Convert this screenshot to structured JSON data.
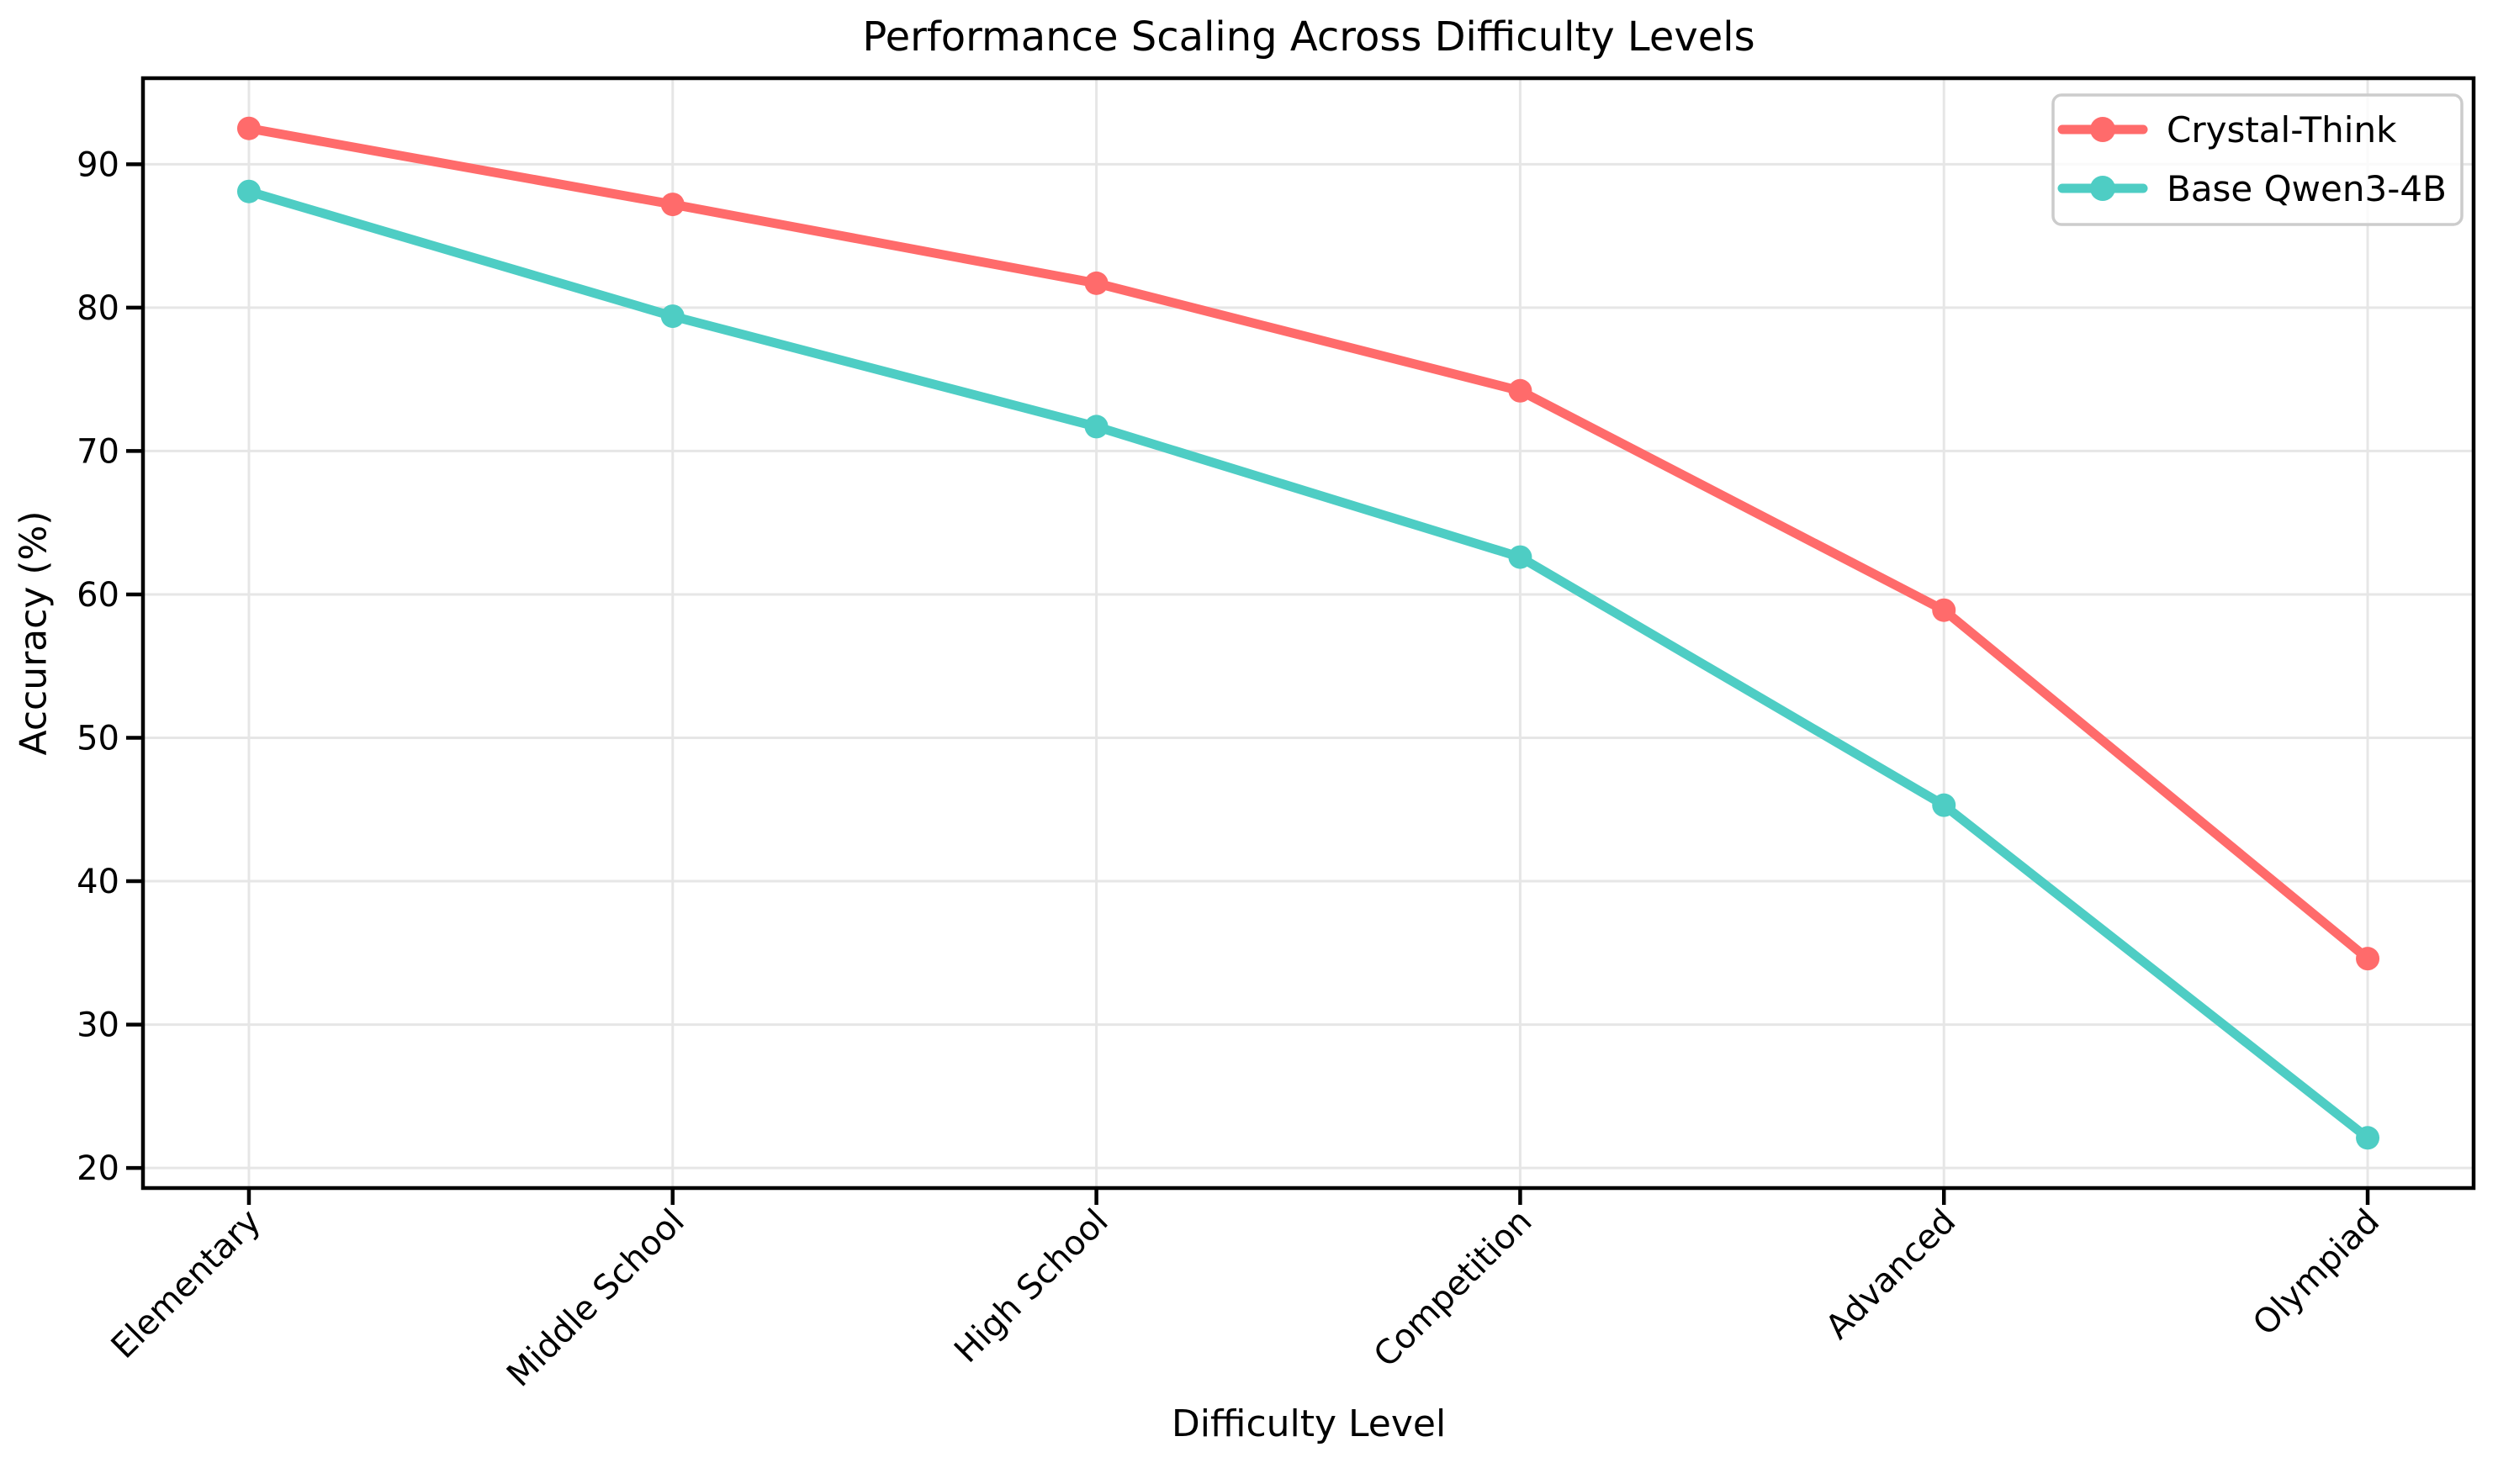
{
  "figure": {
    "background_color": "#ffffff"
  },
  "chart_data": {
    "type": "line",
    "title": "Performance Scaling Across Difficulty Levels",
    "xlabel": "Difficulty Level",
    "ylabel": "Accuracy (%)",
    "categories": [
      "Elementary",
      "Middle School",
      "High School",
      "Competition",
      "Advanced",
      "Olympiad"
    ],
    "series": [
      {
        "name": "Crystal-Think",
        "color": "#FF6B6B",
        "values": [
          92.5,
          87.2,
          81.7,
          74.2,
          58.9,
          34.6
        ]
      },
      {
        "name": "Base Qwen3-4B",
        "color": "#4ECDC4",
        "values": [
          88.1,
          79.4,
          71.7,
          62.6,
          45.3,
          22.1
        ]
      }
    ],
    "y_ticks": [
      20,
      30,
      40,
      50,
      60,
      70,
      80,
      90
    ],
    "ylim": [
      18.6,
      96.0
    ],
    "grid": true,
    "x_tick_rotation": 45,
    "legend_position": "upper right",
    "grid_color": "#e6e6e6",
    "axis_color": "#000000",
    "text_color": "#000000",
    "legend_border_color": "#cccccc"
  }
}
